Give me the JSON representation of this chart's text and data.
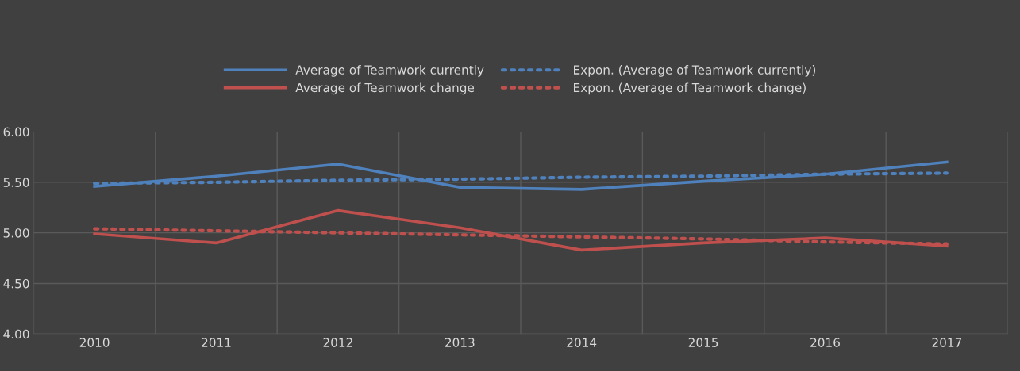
{
  "chart_data": {
    "type": "line",
    "categories": [
      "2010",
      "2011",
      "2012",
      "2013",
      "2014",
      "2015",
      "2016",
      "2017"
    ],
    "series": [
      {
        "name": "Average of Teamwork currently",
        "color": "#4f81bd",
        "line_style": "solid",
        "values": [
          5.46,
          5.56,
          5.68,
          5.45,
          5.43,
          5.51,
          5.58,
          5.7
        ]
      },
      {
        "name": "Average of Teamwork change",
        "color": "#c0504d",
        "line_style": "solid",
        "values": [
          4.99,
          4.9,
          5.22,
          5.05,
          4.83,
          4.9,
          4.95,
          4.87
        ]
      },
      {
        "name": "Expon. (Average of Teamwork currently)",
        "color": "#4f81bd",
        "line_style": "dotted",
        "values": [
          5.49,
          5.5,
          5.52,
          5.53,
          5.55,
          5.56,
          5.58,
          5.59
        ]
      },
      {
        "name": "Expon. (Average of Teamwork change)",
        "color": "#c0504d",
        "line_style": "dotted",
        "values": [
          5.04,
          5.02,
          5.0,
          4.98,
          4.96,
          4.94,
          4.91,
          4.89
        ]
      }
    ],
    "ylim": [
      4.0,
      6.0
    ],
    "yticks": [
      {
        "value": 4.0,
        "label": "4.00"
      },
      {
        "value": 4.5,
        "label": "4.50"
      },
      {
        "value": 5.0,
        "label": "5.00"
      },
      {
        "value": 5.5,
        "label": "5.50"
      },
      {
        "value": 6.0,
        "label": "6.00"
      }
    ],
    "grid": true,
    "legend": "top",
    "marker": "none"
  }
}
